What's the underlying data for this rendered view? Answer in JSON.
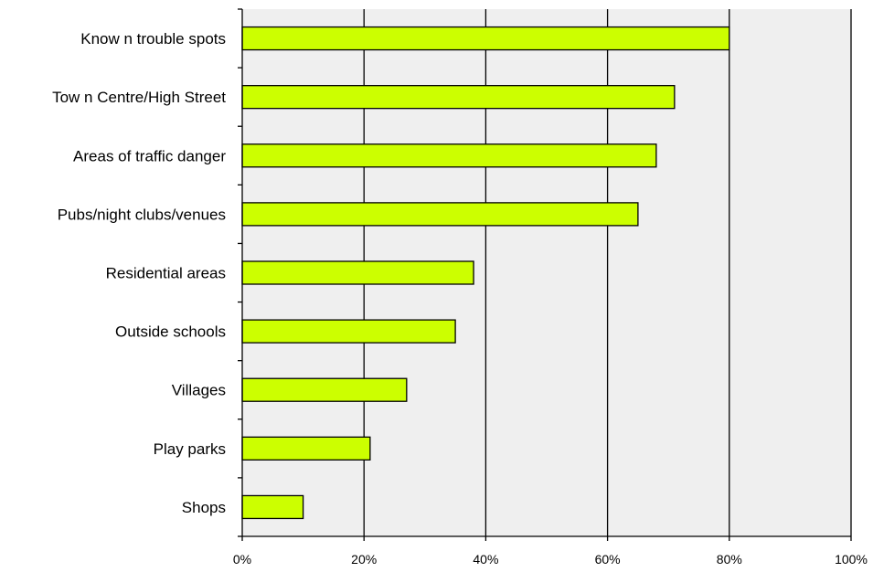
{
  "chart_data": {
    "type": "bar",
    "orientation": "horizontal",
    "title": "",
    "xlabel": "",
    "ylabel": "",
    "categories": [
      "Know n trouble spots",
      "Tow n Centre/High Street",
      "Areas of traffic danger",
      "Pubs/night clubs/venues",
      "Residential areas",
      "Outside schools",
      "Villages",
      "Play parks",
      "Shops"
    ],
    "values": [
      80,
      71,
      68,
      65,
      38,
      35,
      27,
      21,
      10
    ],
    "xlim": [
      0,
      100
    ],
    "x_ticks": [
      0,
      20,
      40,
      60,
      80,
      100
    ],
    "x_tick_labels": [
      "0%",
      "20%",
      "40%",
      "60%",
      "80%",
      "100%"
    ],
    "grid": "vertical",
    "legend": "none",
    "colors": {
      "bar_fill": "#ccff00",
      "bar_stroke": "#000000",
      "plot_background": "#efefef",
      "gridline": "#000000"
    }
  }
}
